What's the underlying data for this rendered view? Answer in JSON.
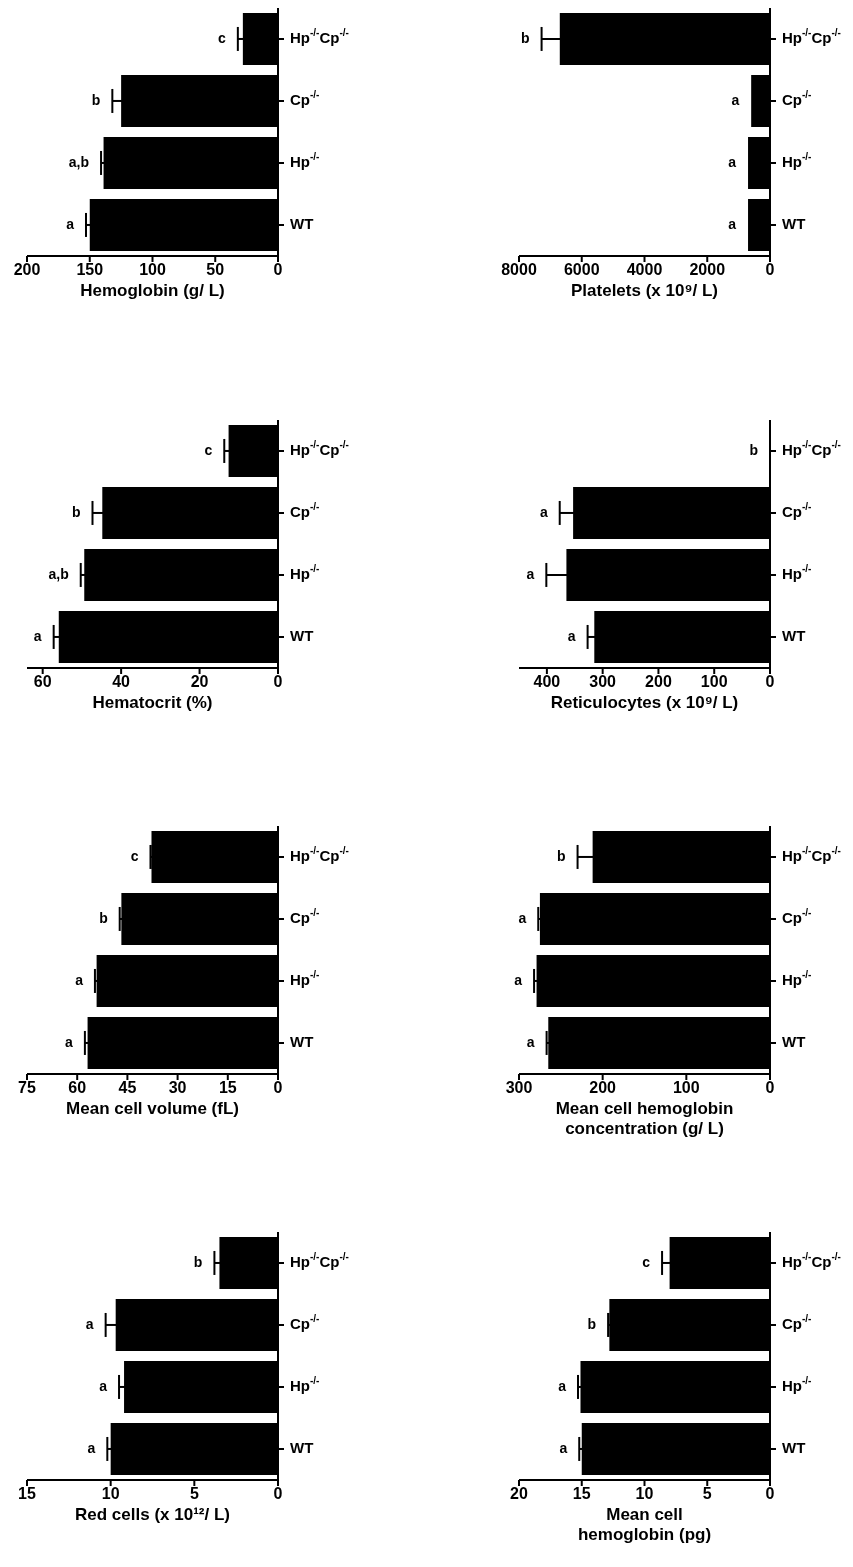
{
  "chart_data": [
    {
      "type": "bar",
      "orientation": "horizontal",
      "xlabel": "Hemoglobin (g/ L)",
      "categories": [
        "Hp$^{-/-}$Cp$^{-/-}$",
        "Cp$^{-/-}$",
        "Hp$^{-/-}$",
        "WT"
      ],
      "values": [
        28,
        125,
        139,
        150
      ],
      "errors": [
        4,
        7,
        2,
        3
      ],
      "value_labels": [
        "c",
        "b",
        "a,b",
        "a"
      ],
      "color": "#000000",
      "xlim": [
        200,
        0
      ],
      "xticks": [
        200,
        150,
        100,
        50,
        0
      ]
    },
    {
      "type": "bar",
      "orientation": "horizontal",
      "xlabel": "Platelets (x 10⁹/ L)",
      "categories": [
        "Hp$^{-/-}$Cp$^{-/-}$",
        "Cp$^{-/-}$",
        "Hp$^{-/-}$",
        "WT"
      ],
      "values": [
        6700,
        600,
        700,
        700
      ],
      "errors": [
        580,
        null,
        null,
        null
      ],
      "value_labels": [
        "b",
        "a",
        "a",
        "a"
      ],
      "color": "#000000",
      "xlim": [
        8000,
        0
      ],
      "xticks": [
        8000,
        6000,
        4000,
        2000,
        0
      ]
    },
    {
      "type": "bar",
      "orientation": "horizontal",
      "xlabel": "Hematocrit (%)",
      "categories": [
        "Hp$^{-/-}$Cp$^{-/-}$",
        "Cp$^{-/-}$",
        "Hp$^{-/-}$",
        "WT"
      ],
      "values": [
        12.6,
        44.8,
        49.4,
        55.9
      ],
      "errors": [
        1.1,
        2.5,
        0.9,
        1.3
      ],
      "value_labels": [
        "c",
        "b",
        "a,b",
        "a"
      ],
      "color": "#000000",
      "xlim": [
        64,
        0
      ],
      "xticks": [
        60,
        40,
        20,
        0
      ]
    },
    {
      "type": "bar",
      "orientation": "horizontal",
      "xlabel": "Reticulocytes (x 10⁹/ L)",
      "categories": [
        "Hp$^{-/-}$Cp$^{-/-}$",
        "Cp$^{-/-}$",
        "Hp$^{-/-}$",
        "WT"
      ],
      "values": [
        0,
        353,
        365,
        315
      ],
      "errors": [
        null,
        24,
        36,
        12
      ],
      "value_labels": [
        "b",
        "a",
        "a",
        "a"
      ],
      "color": "#000000",
      "xlim": [
        450,
        0
      ],
      "xticks": [
        400,
        300,
        200,
        100,
        0
      ]
    },
    {
      "type": "bar",
      "orientation": "horizontal",
      "xlabel": "Mean cell volume (fL)",
      "categories": [
        "Hp$^{-/-}$Cp$^{-/-}$",
        "Cp$^{-/-}$",
        "Hp$^{-/-}$",
        "WT"
      ],
      "values": [
        37.8,
        46.8,
        54.2,
        56.9
      ],
      "errors": [
        0.3,
        0.5,
        0.5,
        0.8
      ],
      "value_labels": [
        "c",
        "b",
        "a",
        "a"
      ],
      "color": "#000000",
      "xlim": [
        75,
        0
      ],
      "xticks": [
        75,
        60,
        45,
        30,
        15,
        0
      ]
    },
    {
      "type": "bar",
      "orientation": "horizontal",
      "xlabel": "Mean cell hemoglobin\nconcentration (g/ L)",
      "categories": [
        "Hp$^{-/-}$Cp$^{-/-}$",
        "Cp$^{-/-}$",
        "Hp$^{-/-}$",
        "WT"
      ],
      "values": [
        212,
        275,
        279,
        265
      ],
      "errors": [
        18,
        2,
        3,
        2
      ],
      "value_labels": [
        "b",
        "a",
        "a",
        "a"
      ],
      "color": "#000000",
      "xlim": [
        300,
        0
      ],
      "xticks": [
        300,
        200,
        100,
        0
      ]
    },
    {
      "type": "bar",
      "orientation": "horizontal",
      "xlabel": "Red cells (x 10¹²/ L)",
      "categories": [
        "Hp$^{-/-}$Cp$^{-/-}$",
        "Cp$^{-/-}$",
        "Hp$^{-/-}$",
        "WT"
      ],
      "values": [
        3.5,
        9.7,
        9.2,
        10.0
      ],
      "errors": [
        0.3,
        0.6,
        0.3,
        0.2
      ],
      "value_labels": [
        "b",
        "a",
        "a",
        "a"
      ],
      "color": "#000000",
      "xlim": [
        15,
        0
      ],
      "xticks": [
        15,
        10,
        5,
        0
      ]
    },
    {
      "type": "bar",
      "orientation": "horizontal",
      "xlabel": "Mean cell\nhemoglobin (pg)",
      "categories": [
        "Hp$^{-/-}$Cp$^{-/-}$",
        "Cp$^{-/-}$",
        "Hp$^{-/-}$",
        "WT"
      ],
      "values": [
        8.0,
        12.8,
        15.1,
        15.0
      ],
      "errors": [
        0.6,
        0.1,
        0.2,
        0.2
      ],
      "value_labels": [
        "c",
        "b",
        "a",
        "a"
      ],
      "color": "#000000",
      "xlim": [
        20,
        0
      ],
      "xticks": [
        20,
        15,
        10,
        5,
        0
      ]
    }
  ]
}
